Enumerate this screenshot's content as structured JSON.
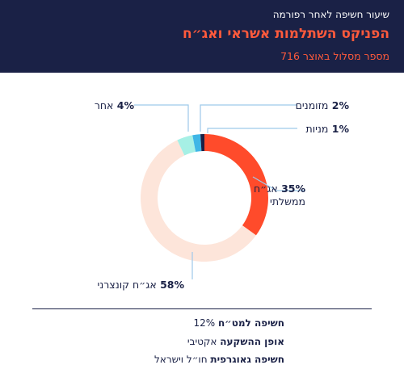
{
  "header": {
    "supertitle": "שיעור חשיפה לאחר רפורמה",
    "title": "הפניקס השתלמות אשראי ואג״ח",
    "subtitle": "מספר מסלול באוצר 716"
  },
  "chart_data": {
    "type": "pie",
    "donut": true,
    "slices": [
      {
        "pct_label": "35%",
        "label_lines": [
          "אג״ח",
          "ממשלתי"
        ],
        "value": 35,
        "color": "#ff4b2b"
      },
      {
        "pct_label": "58%",
        "label_lines": [
          "אג״ח קונצרני"
        ],
        "value": 58,
        "color": "#fde5da"
      },
      {
        "pct_label": "4%",
        "label_lines": [
          "אחר"
        ],
        "value": 4,
        "color": "#a6f0e5"
      },
      {
        "pct_label": "2%",
        "label_lines": [
          "מזומנים"
        ],
        "value": 2,
        "color": "#3fb6e6"
      },
      {
        "pct_label": "1%",
        "label_lines": [
          "מניות"
        ],
        "value": 1,
        "color": "#1a2146"
      }
    ]
  },
  "info": {
    "rows": [
      {
        "key": "חשיפה למט״ח",
        "value": "12%"
      },
      {
        "key": "אופן ההשקעה",
        "value": "אקטיבי"
      },
      {
        "key": "חשיפה גאוגרפית",
        "value": "חו״ל וישראל"
      }
    ]
  },
  "colors": {
    "navy": "#1a2146",
    "accent": "#ff5a3c"
  }
}
